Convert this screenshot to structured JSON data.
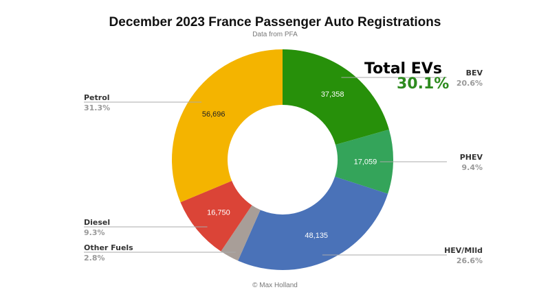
{
  "chart_data": {
    "type": "pie",
    "variant": "donut",
    "title": "December 2023 France Passenger Auto Registrations",
    "subtitle": "Data from PFA",
    "footer": "© Max Holland",
    "annotation": {
      "title": "Total EVs",
      "value": "30.1%",
      "color": "#2e8b1f"
    },
    "slices": [
      {
        "name": "BEV",
        "value": 37358,
        "value_label": "37,358",
        "percent": "20.6%",
        "share": 20.6,
        "color": "#27900a",
        "label_color": "#ffffff"
      },
      {
        "name": "PHEV",
        "value": 17059,
        "value_label": "17,059",
        "percent": "9.4%",
        "share": 9.4,
        "color": "#34a45a",
        "label_color": "#ffffff"
      },
      {
        "name": "HEV/Mild",
        "value": 48135,
        "value_label": "48,135",
        "percent": "26.6%",
        "share": 26.6,
        "color": "#4a72b8",
        "label_color": "#ffffff"
      },
      {
        "name": "Other Fuels",
        "value": null,
        "value_label": "",
        "percent": "2.8%",
        "share": 2.8,
        "color": "#a89e98",
        "label_color": "#ffffff"
      },
      {
        "name": "Diesel",
        "value": 16750,
        "value_label": "16,750",
        "percent": "9.3%",
        "share": 9.3,
        "color": "#db4437",
        "label_color": "#ffffff"
      },
      {
        "name": "Petrol",
        "value": 56696,
        "value_label": "56,696",
        "percent": "31.3%",
        "share": 31.3,
        "color": "#f4b400",
        "label_color": "#222222"
      }
    ]
  },
  "display_names": [
    "BEV",
    "PHEV",
    "HEV/MIld",
    "Other Fuels",
    "Diesel",
    "Petrol"
  ]
}
